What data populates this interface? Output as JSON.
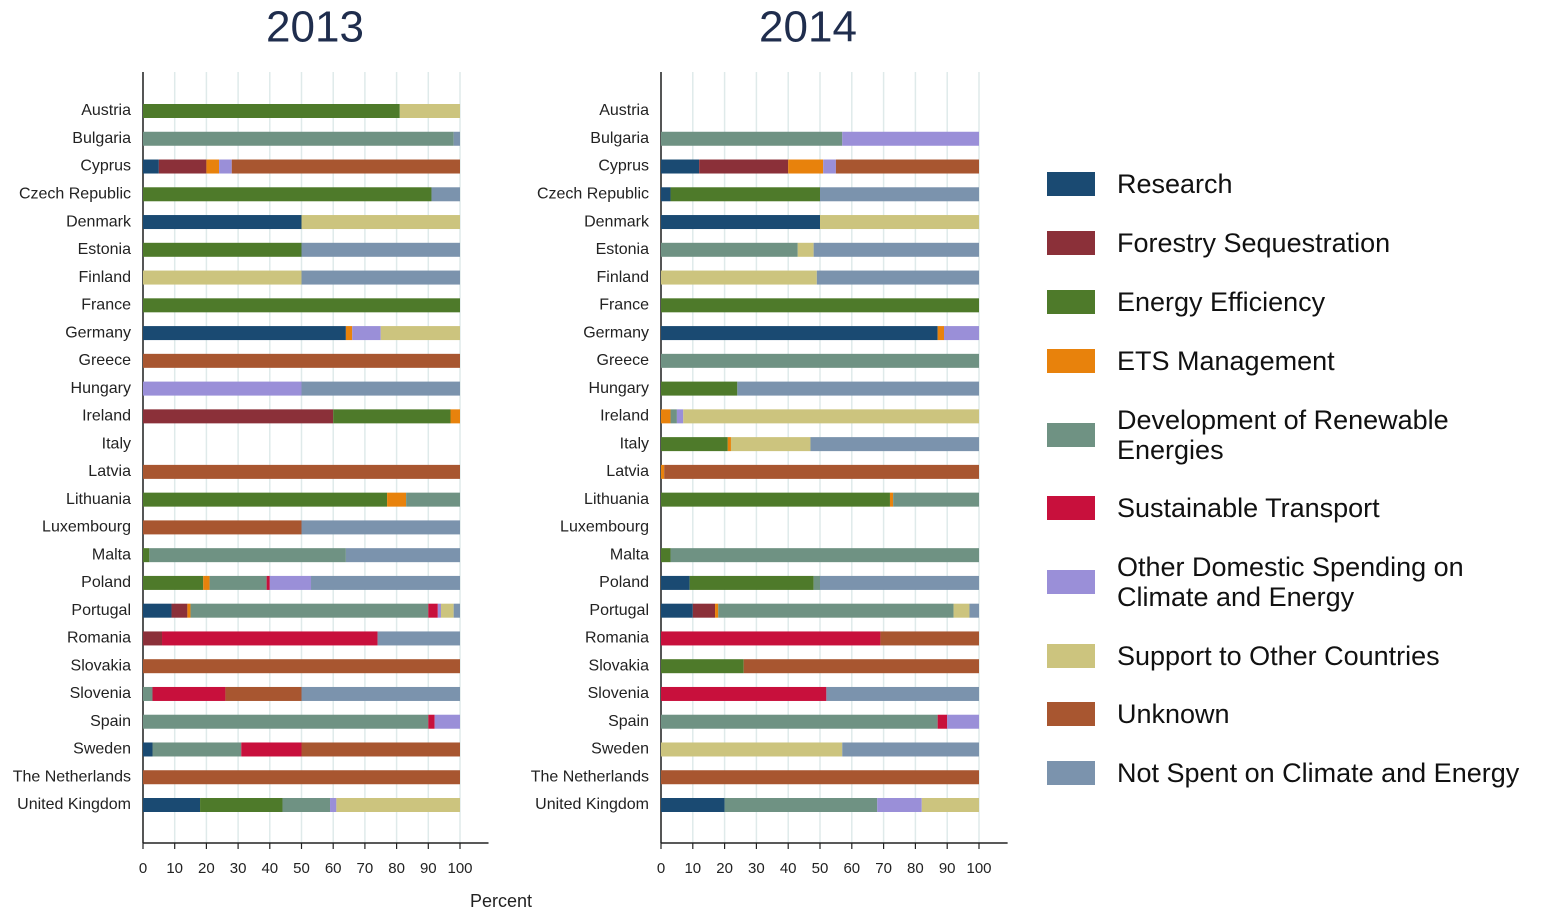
{
  "chart_data": [
    {
      "type": "bar",
      "title": "2013",
      "xlabel": "Percent",
      "categories": [
        "Austria",
        "Bulgaria",
        "Cyprus",
        "Czech Republic",
        "Denmark",
        "Estonia",
        "Finland",
        "France",
        "Germany",
        "Greece",
        "Hungary",
        "Ireland",
        "Italy",
        "Latvia",
        "Lithuania",
        "Luxembourg",
        "Malta",
        "Poland",
        "Portugal",
        "Romania",
        "Slovakia",
        "Slovenia",
        "Spain",
        "Sweden",
        "The Netherlands",
        "United Kingdom"
      ],
      "xlim": [
        0,
        109
      ],
      "xticks": [
        0,
        10,
        20,
        30,
        40,
        50,
        60,
        70,
        80,
        90,
        100
      ],
      "grid": true,
      "series": [
        {
          "name": "Research",
          "color": "#1a4a72",
          "values": [
            0,
            0,
            5,
            0,
            50,
            0,
            0,
            0,
            64,
            0,
            0,
            0,
            0,
            0,
            0,
            0,
            0,
            0,
            9,
            0,
            0,
            0,
            0,
            3,
            0,
            18
          ]
        },
        {
          "name": "Forestry Sequestration",
          "color": "#8b3039",
          "values": [
            0,
            0,
            15,
            0,
            0,
            0,
            0,
            0,
            0,
            0,
            0,
            60,
            0,
            0,
            0,
            0,
            0,
            0,
            5,
            6,
            0,
            0,
            0,
            0,
            0,
            0
          ]
        },
        {
          "name": "Energy Efficiency",
          "color": "#4e7a2a",
          "values": [
            81,
            0,
            0,
            91,
            0,
            50,
            0,
            100,
            0,
            0,
            0,
            37,
            0,
            0,
            77,
            0,
            2,
            19,
            0,
            0,
            0,
            0,
            0,
            0,
            0,
            26
          ]
        },
        {
          "name": "ETS Management",
          "color": "#e8820c",
          "values": [
            0,
            0,
            4,
            0,
            0,
            0,
            0,
            0,
            2,
            0,
            0,
            3,
            0,
            0,
            6,
            0,
            0,
            2,
            1,
            0,
            0,
            0,
            0,
            0,
            0,
            0
          ]
        },
        {
          "name": "Development of Renewable Energies",
          "color": "#6f9283",
          "values": [
            0,
            98,
            0,
            0,
            0,
            0,
            0,
            0,
            0,
            0,
            0,
            0,
            0,
            0,
            17,
            0,
            62,
            18,
            75,
            0,
            0,
            3,
            90,
            28,
            0,
            15
          ]
        },
        {
          "name": "Sustainable Transport",
          "color": "#c8103c",
          "values": [
            0,
            0,
            0,
            0,
            0,
            0,
            0,
            0,
            0,
            0,
            0,
            0,
            0,
            0,
            0,
            0,
            0,
            1,
            3,
            68,
            0,
            23,
            2,
            19,
            0,
            0
          ]
        },
        {
          "name": "Other Domestic Spending on Climate and Energy",
          "color": "#9a8fd8",
          "values": [
            0,
            0,
            4,
            0,
            0,
            0,
            0,
            0,
            9,
            0,
            50,
            0,
            0,
            0,
            0,
            0,
            0,
            13,
            1,
            0,
            0,
            0,
            8,
            0,
            0,
            2
          ]
        },
        {
          "name": "Support to Other Countries",
          "color": "#ccc47e",
          "values": [
            19,
            0,
            0,
            0,
            50,
            0,
            50,
            0,
            25,
            0,
            0,
            0,
            0,
            0,
            0,
            0,
            0,
            0,
            4,
            0,
            0,
            0,
            0,
            0,
            0,
            39
          ]
        },
        {
          "name": "Unknown",
          "color": "#a85630",
          "values": [
            0,
            0,
            72,
            0,
            0,
            0,
            0,
            0,
            0,
            100,
            0,
            0,
            0,
            100,
            0,
            50,
            0,
            0,
            0,
            0,
            100,
            24,
            0,
            50,
            100,
            0
          ]
        },
        {
          "name": "Not Spent on Climate and Energy",
          "color": "#7b93ad",
          "values": [
            0,
            2,
            0,
            9,
            0,
            50,
            50,
            0,
            0,
            0,
            50,
            0,
            0,
            0,
            0,
            50,
            36,
            47,
            2,
            26,
            0,
            50,
            0,
            0,
            0,
            0
          ]
        }
      ]
    },
    {
      "type": "bar",
      "title": "2014",
      "categories": [
        "Austria",
        "Bulgaria",
        "Cyprus",
        "Czech Republic",
        "Denmark",
        "Estonia",
        "Finland",
        "France",
        "Germany",
        "Greece",
        "Hungary",
        "Ireland",
        "Italy",
        "Latvia",
        "Lithuania",
        "Luxembourg",
        "Malta",
        "Poland",
        "Portugal",
        "Romania",
        "Slovakia",
        "Slovenia",
        "Spain",
        "Sweden",
        "The Netherlands",
        "United Kingdom"
      ],
      "xlim": [
        0,
        109
      ],
      "xticks": [
        0,
        10,
        20,
        30,
        40,
        50,
        60,
        70,
        80,
        90,
        100
      ],
      "grid": true,
      "series": [
        {
          "name": "Research",
          "color": "#1a4a72",
          "values": [
            0,
            0,
            12,
            3,
            50,
            0,
            0,
            0,
            87,
            0,
            0,
            0,
            0,
            0,
            0,
            0,
            0,
            9,
            10,
            0,
            0,
            0,
            0,
            0,
            0,
            20
          ]
        },
        {
          "name": "Forestry Sequestration",
          "color": "#8b3039",
          "values": [
            0,
            0,
            28,
            0,
            0,
            0,
            0,
            0,
            0,
            0,
            0,
            0,
            0,
            0,
            0,
            0,
            0,
            0,
            7,
            0,
            0,
            0,
            0,
            0,
            0,
            0
          ]
        },
        {
          "name": "Energy Efficiency",
          "color": "#4e7a2a",
          "values": [
            0,
            0,
            0,
            47,
            0,
            0,
            0,
            100,
            0,
            0,
            24,
            0,
            21,
            0,
            72,
            0,
            3,
            39,
            0,
            0,
            26,
            0,
            0,
            0,
            0,
            0
          ]
        },
        {
          "name": "ETS Management",
          "color": "#e8820c",
          "values": [
            0,
            0,
            11,
            0,
            0,
            0,
            0,
            0,
            2,
            0,
            0,
            3,
            1,
            1,
            1,
            0,
            0,
            0,
            1,
            0,
            0,
            0,
            0,
            0,
            0,
            0
          ]
        },
        {
          "name": "Development of Renewable Energies",
          "color": "#6f9283",
          "values": [
            0,
            57,
            0,
            0,
            0,
            43,
            0,
            0,
            0,
            100,
            0,
            2,
            0,
            0,
            27,
            0,
            97,
            2,
            74,
            0,
            0,
            0,
            87,
            0,
            0,
            48
          ]
        },
        {
          "name": "Sustainable Transport",
          "color": "#c8103c",
          "values": [
            0,
            0,
            0,
            0,
            0,
            0,
            0,
            0,
            0,
            0,
            0,
            0,
            0,
            0,
            0,
            0,
            0,
            0,
            0,
            69,
            0,
            52,
            3,
            0,
            0,
            0
          ]
        },
        {
          "name": "Other Domestic Spending on Climate and Energy",
          "color": "#9a8fd8",
          "values": [
            0,
            43,
            4,
            0,
            0,
            0,
            0,
            0,
            11,
            0,
            0,
            2,
            0,
            0,
            0,
            0,
            0,
            0,
            0,
            0,
            0,
            0,
            10,
            0,
            0,
            14
          ]
        },
        {
          "name": "Support to Other Countries",
          "color": "#ccc47e",
          "values": [
            0,
            0,
            0,
            0,
            50,
            5,
            49,
            0,
            0,
            0,
            0,
            93,
            25,
            0,
            0,
            0,
            0,
            0,
            5,
            0,
            0,
            0,
            0,
            57,
            0,
            18
          ]
        },
        {
          "name": "Unknown",
          "color": "#a85630",
          "values": [
            0,
            0,
            45,
            0,
            0,
            0,
            0,
            0,
            0,
            0,
            0,
            0,
            0,
            99,
            0,
            0,
            0,
            0,
            0,
            31,
            74,
            0,
            0,
            0,
            100,
            0
          ]
        },
        {
          "name": "Not Spent on Climate and Energy",
          "color": "#7b93ad",
          "values": [
            0,
            0,
            0,
            50,
            0,
            52,
            51,
            0,
            0,
            0,
            76,
            0,
            53,
            0,
            0,
            0,
            0,
            50,
            3,
            0,
            0,
            48,
            0,
            43,
            0,
            0
          ]
        }
      ]
    }
  ]
}
